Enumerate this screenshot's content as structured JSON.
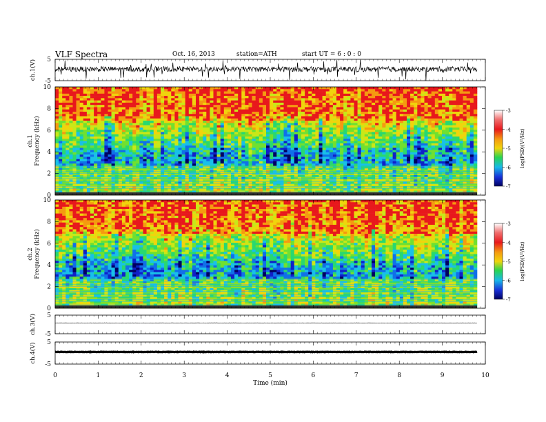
{
  "header": {
    "title": "VLF  Spectra",
    "date": "Oct. 16, 2013",
    "station": "station=ATH",
    "start": "start  UT  =   6  : 0  : 0"
  },
  "colors": {
    "scale_high": "#e8181c",
    "scale_mid_high": "#f0d40c",
    "scale_mid": "#28d450",
    "scale_mid_low": "#18b8e8",
    "scale_low": "#000080"
  },
  "chart_data": [
    {
      "type": "line",
      "ylabel": "ch.1(V)",
      "ylim": [
        -5,
        5
      ],
      "y_ticks": [
        "5",
        "-5"
      ],
      "xlim": [
        0,
        10
      ],
      "description_values": {
        "baseline": 0.8,
        "spread": 1.2
      }
    },
    {
      "type": "heatmap",
      "ylabel": "ch.1\nFrequency (kHz)",
      "ylim": [
        0,
        10
      ],
      "y_ticks": [
        "0",
        "2",
        "4",
        "6",
        "8",
        "10"
      ],
      "xlim": [
        0,
        10
      ],
      "colorbar": {
        "label": "log(PSD)(V²/Hz)",
        "range": [
          -7,
          -3
        ],
        "ticks": [
          "-3",
          "-4",
          "-5",
          "-6",
          "-7"
        ]
      }
    },
    {
      "type": "heatmap",
      "ylabel": "ch.2\nFrequency (kHz)",
      "ylim": [
        0,
        10
      ],
      "y_ticks": [
        "0",
        "2",
        "4",
        "6",
        "8",
        "10"
      ],
      "xlim": [
        0,
        10
      ],
      "colorbar": {
        "label": "log(PSD)(V²/Hz)",
        "range": [
          -7,
          -3
        ],
        "ticks": [
          "-3",
          "-4",
          "-5",
          "-6",
          "-7"
        ]
      }
    },
    {
      "type": "line",
      "ylabel": "ch.3(V)",
      "ylim": [
        -5,
        5
      ],
      "y_ticks": [
        "5",
        "-5"
      ],
      "xlim": [
        0,
        10
      ]
    },
    {
      "type": "line",
      "ylabel": "ch.4(V)",
      "ylim": [
        -5,
        5
      ],
      "y_ticks": [
        "5",
        "-5"
      ],
      "xlim": [
        0,
        10
      ],
      "xlabel": "Time  (min)",
      "x_ticks": [
        "0",
        "1",
        "2",
        "3",
        "4",
        "5",
        "6",
        "7",
        "8",
        "9",
        "10"
      ]
    }
  ]
}
